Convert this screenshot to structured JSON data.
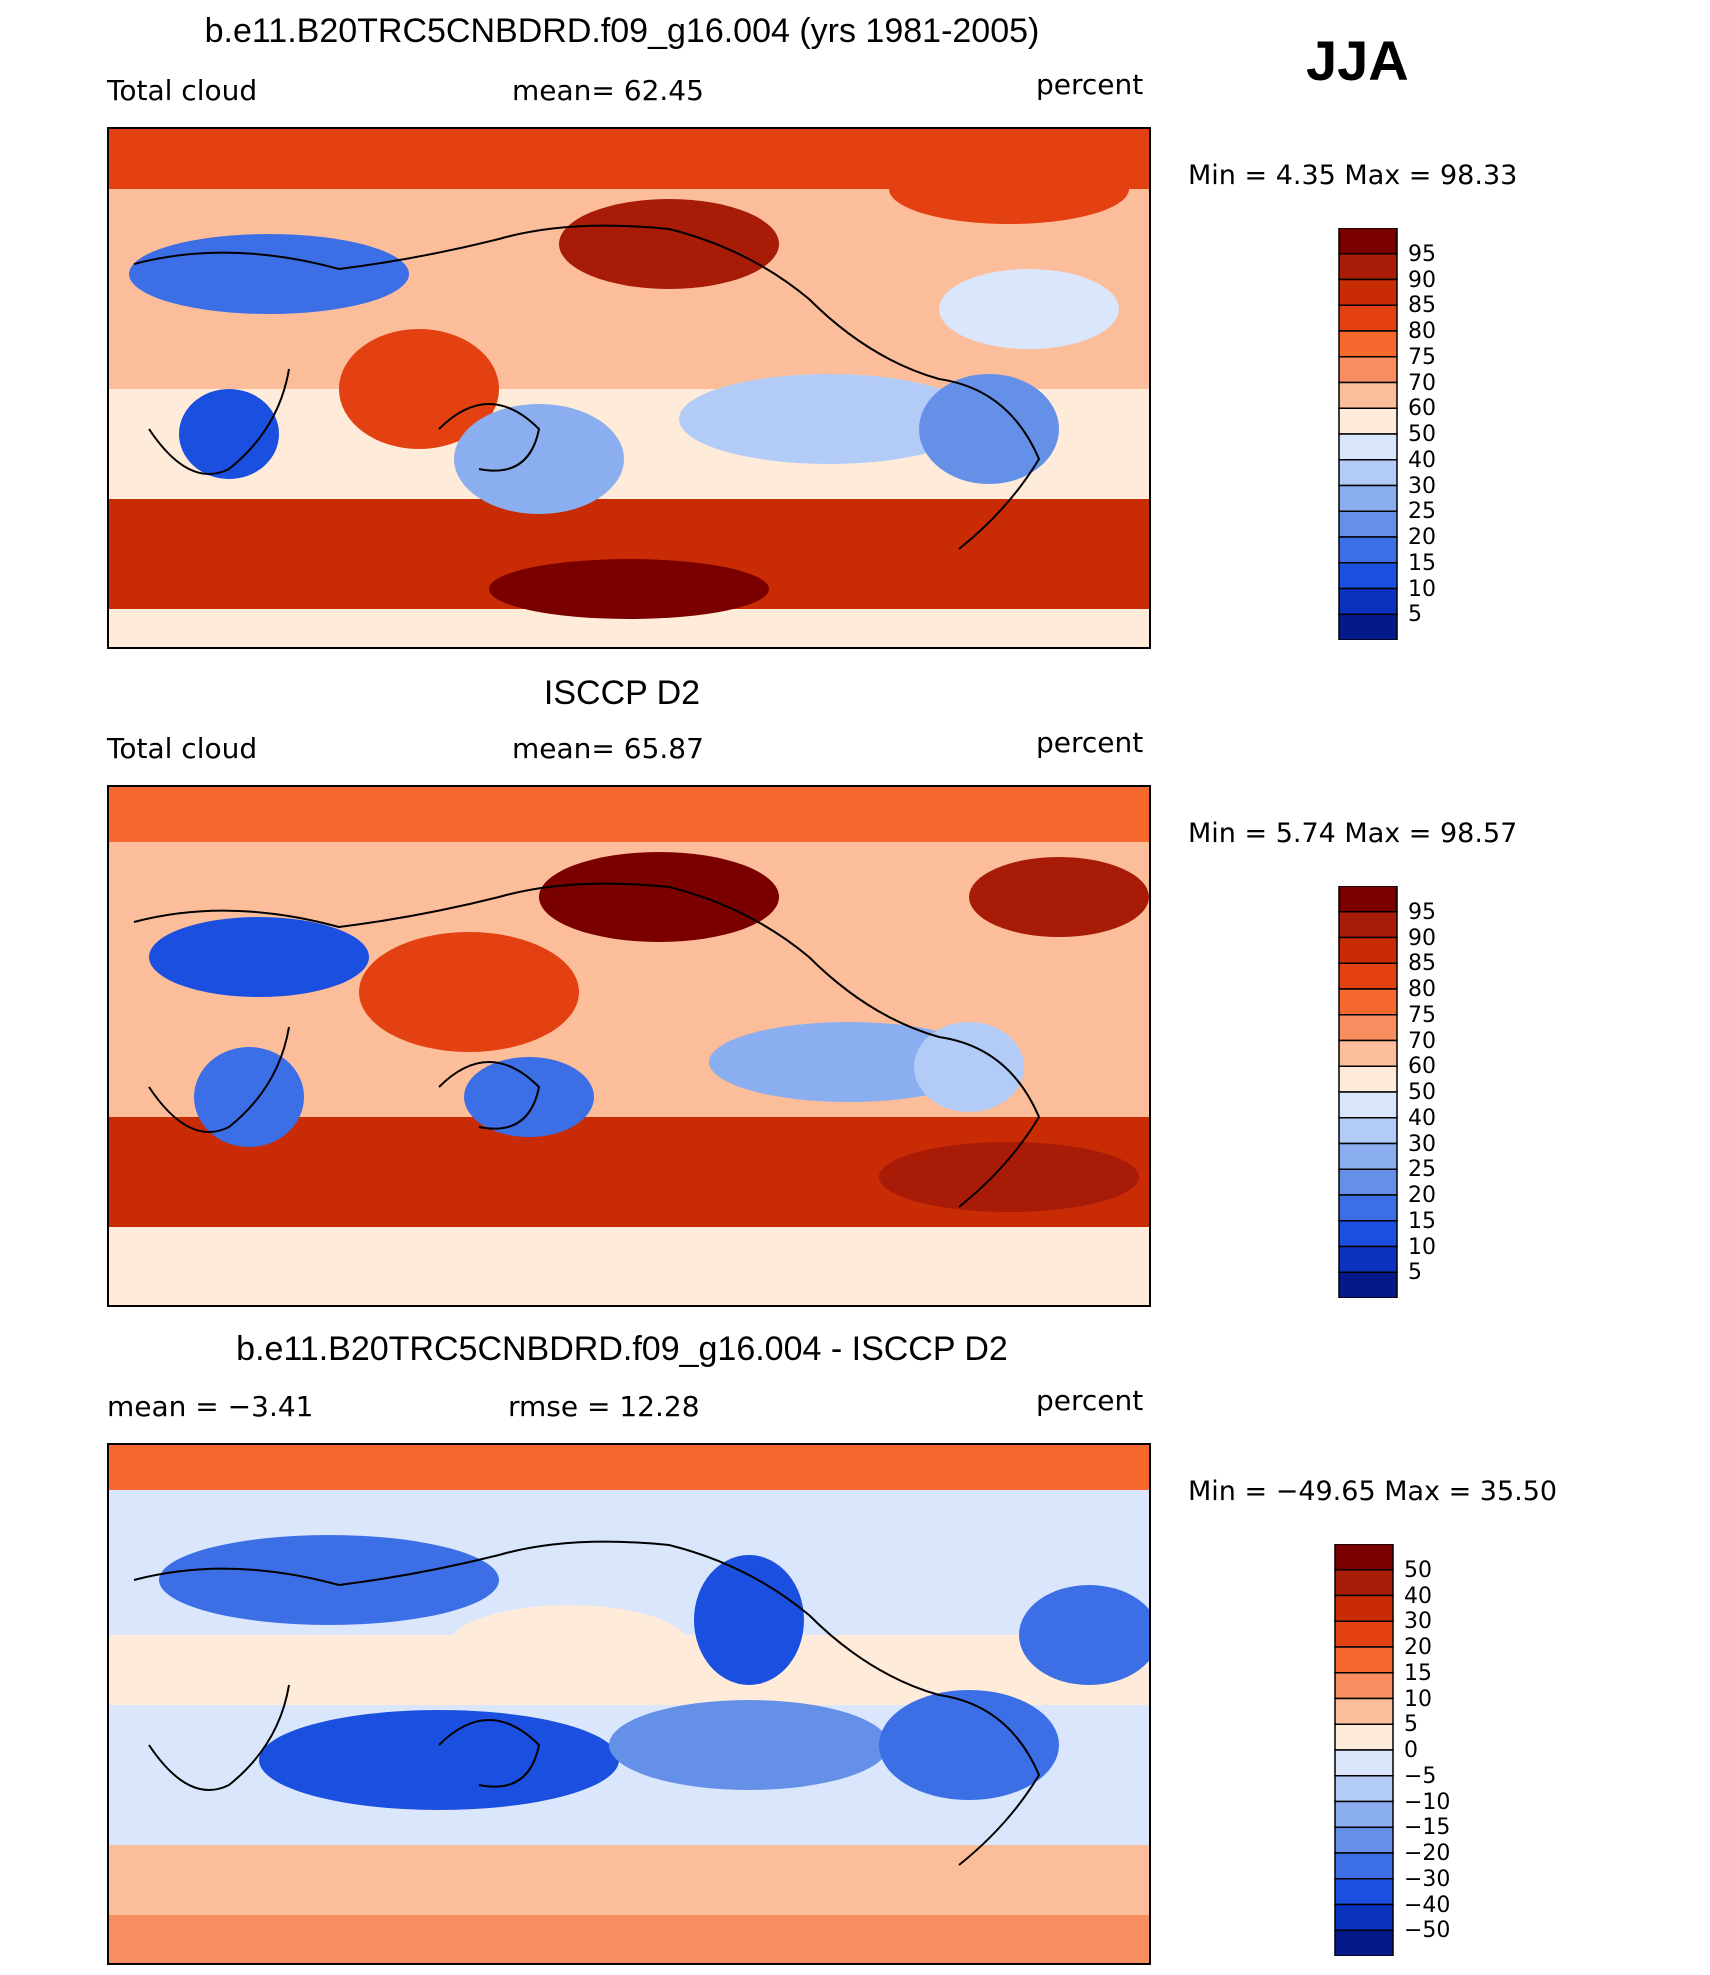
{
  "season": "JJA",
  "panels": [
    {
      "title": "b.e11.B20TRC5CNBDRD.f09_g16.004 (yrs 1981-2005)",
      "left_label": "Total cloud",
      "center_label": "mean=   62.45",
      "units": "percent",
      "minmax": "Min =    4.35  Max =   98.33",
      "colorbar_labels": [
        "95",
        "90",
        "85",
        "80",
        "75",
        "70",
        "60",
        "50",
        "40",
        "30",
        "25",
        "20",
        "15",
        "10",
        "5"
      ],
      "scheme": "abs"
    },
    {
      "title": "ISCCP D2",
      "left_label": "Total cloud",
      "center_label": "mean=   65.87",
      "units": "percent",
      "minmax": "Min =    5.74  Max =   98.57",
      "colorbar_labels": [
        "95",
        "90",
        "85",
        "80",
        "75",
        "70",
        "60",
        "50",
        "40",
        "30",
        "25",
        "20",
        "15",
        "10",
        "5"
      ],
      "scheme": "abs"
    },
    {
      "title": "b.e11.B20TRC5CNBDRD.f09_g16.004 - ISCCP D2",
      "left_label": "mean =   −3.41",
      "center_label": "rmse =   12.28",
      "units": "percent",
      "minmax": "Min = −49.65  Max =   35.50",
      "colorbar_labels": [
        "50",
        "40",
        "30",
        "20",
        "15",
        "10",
        "5",
        "0",
        "−5",
        "−10",
        "−15",
        "−20",
        "−30",
        "−40",
        "−50"
      ],
      "scheme": "diff"
    }
  ],
  "colors": {
    "ramp": [
      "#7a0000",
      "#a81b06",
      "#c92c05",
      "#e34112",
      "#f5692e",
      "#f88e5f",
      "#fcbd9a",
      "#feebd9",
      "#d9e6fb",
      "#b2cbf7",
      "#8aaeef",
      "#6590e8",
      "#3c6ee6",
      "#1a4fe0",
      "#0b31bf",
      "#041a8a"
    ]
  }
}
